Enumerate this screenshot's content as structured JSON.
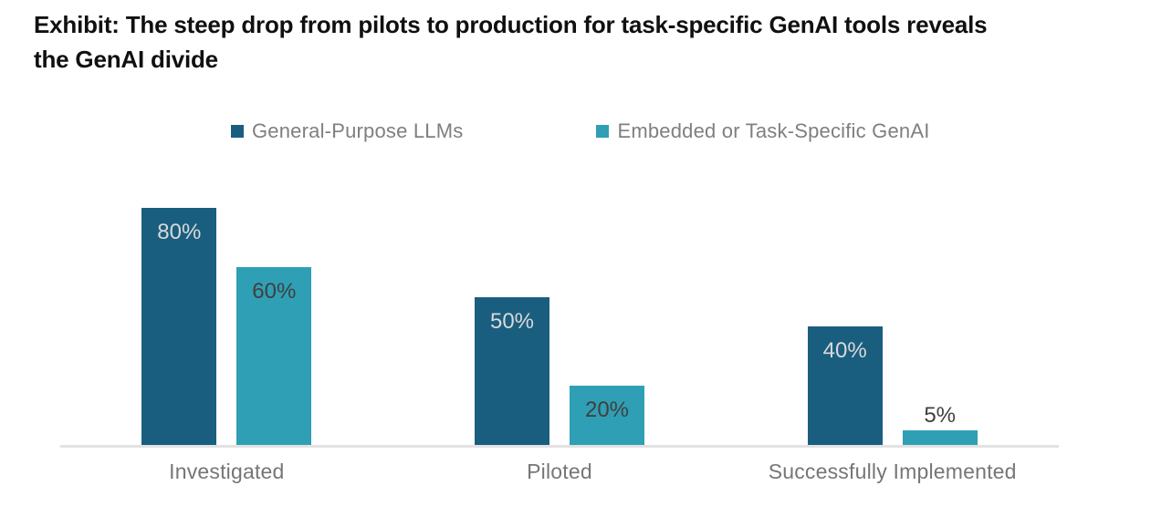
{
  "header": {
    "title": "Exhibit: The steep drop from pilots to production for task-specific GenAI tools reveals the GenAI divide",
    "title_lines": [
      "Exhibit: The steep drop from pilots to production for task-specific GenAI tools reveals",
      "the GenAI divide"
    ]
  },
  "chart_data": {
    "type": "bar",
    "title": "Exhibit: The steep drop from pilots to production for task-specific GenAI tools reveals the GenAI divide",
    "categories": [
      "Investigated",
      "Piloted",
      "Successfully Implemented"
    ],
    "series": [
      {
        "name": "General-Purpose LLMs",
        "color": "#1a5e7f",
        "label_color": "#d9d9d9",
        "values": [
          80,
          50,
          40
        ]
      },
      {
        "name": "Embedded or Task-Specific GenAI",
        "color": "#2f9fb5",
        "label_color": "#3f3f3f",
        "values": [
          60,
          20,
          5
        ]
      }
    ],
    "unit": "%",
    "value_labels": [
      [
        "80%",
        "50%",
        "40%"
      ],
      [
        "60%",
        "20%",
        "5%"
      ]
    ],
    "ylim": [
      0,
      100
    ],
    "grid": false,
    "legend_position": "top",
    "outside_label_color": "#3f3f3f",
    "axis_line_color": "#e2e2e2"
  }
}
